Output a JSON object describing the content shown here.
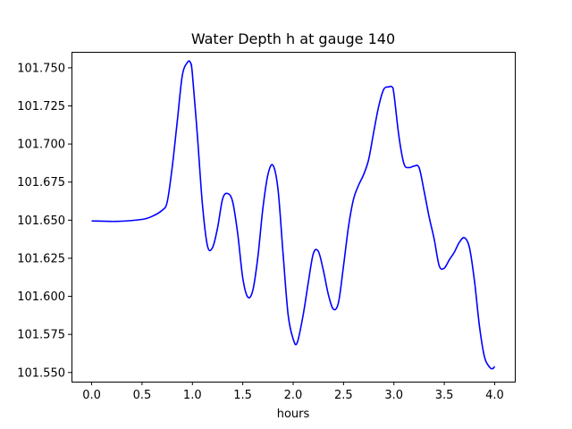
{
  "chart_data": {
    "type": "line",
    "title": "Water Depth h at gauge 140",
    "xlabel": "hours",
    "ylabel": "",
    "xlim": [
      -0.2,
      4.2
    ],
    "ylim": [
      101.544,
      101.7605
    ],
    "x_ticks": [
      0.0,
      0.5,
      1.0,
      1.5,
      2.0,
      2.5,
      3.0,
      3.5,
      4.0
    ],
    "x_tick_labels": [
      "0.0",
      "0.5",
      "1.0",
      "1.5",
      "2.0",
      "2.5",
      "3.0",
      "3.5",
      "4.0"
    ],
    "y_ticks": [
      101.55,
      101.575,
      101.6,
      101.625,
      101.65,
      101.675,
      101.7,
      101.725,
      101.75
    ],
    "y_tick_labels": [
      "101.550",
      "101.575",
      "101.600",
      "101.625",
      "101.650",
      "101.675",
      "101.700",
      "101.725",
      "101.750"
    ],
    "grid": false,
    "series": [
      {
        "color": "#0000ff",
        "x": [
          0.0,
          0.25,
          0.5,
          0.6,
          0.7,
          0.75,
          0.8,
          0.85,
          0.9,
          0.95,
          0.98,
          1.0,
          1.05,
          1.1,
          1.15,
          1.2,
          1.25,
          1.3,
          1.35,
          1.4,
          1.45,
          1.5,
          1.55,
          1.6,
          1.65,
          1.7,
          1.75,
          1.8,
          1.85,
          1.9,
          1.95,
          2.0,
          2.04,
          2.1,
          2.15,
          2.2,
          2.25,
          2.3,
          2.35,
          2.4,
          2.45,
          2.5,
          2.55,
          2.6,
          2.65,
          2.7,
          2.75,
          2.8,
          2.85,
          2.9,
          2.95,
          2.98,
          3.0,
          3.05,
          3.1,
          3.15,
          3.2,
          3.25,
          3.3,
          3.35,
          3.4,
          3.45,
          3.5,
          3.55,
          3.6,
          3.65,
          3.7,
          3.75,
          3.8,
          3.85,
          3.9,
          3.95,
          3.98,
          4.0
        ],
        "values": [
          101.6495,
          101.6492,
          101.6505,
          101.6525,
          101.6565,
          101.662,
          101.685,
          101.715,
          101.745,
          101.7535,
          101.7535,
          101.746,
          101.705,
          101.66,
          101.633,
          101.632,
          101.645,
          101.664,
          101.6675,
          101.662,
          101.641,
          101.612,
          101.5995,
          101.604,
          101.626,
          101.658,
          101.68,
          101.686,
          101.67,
          101.628,
          101.588,
          101.572,
          101.5695,
          101.588,
          101.609,
          101.628,
          101.6295,
          101.617,
          101.601,
          101.5915,
          101.596,
          101.62,
          101.646,
          101.664,
          101.673,
          101.68,
          101.69,
          101.708,
          101.725,
          101.736,
          101.7375,
          101.7375,
          101.733,
          101.705,
          101.687,
          101.6845,
          101.6855,
          101.6845,
          101.669,
          101.652,
          101.6375,
          101.62,
          101.6185,
          101.624,
          101.629,
          101.6355,
          101.6385,
          101.632,
          101.61,
          101.58,
          101.56,
          101.5535,
          101.5525,
          101.554
        ]
      }
    ]
  }
}
